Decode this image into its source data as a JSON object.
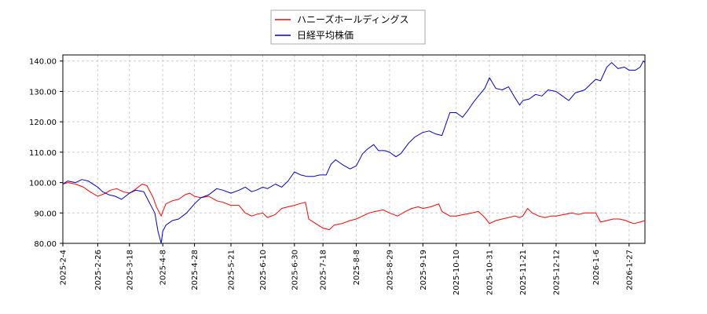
{
  "chart_data": {
    "type": "line",
    "legend_placement": "top-center",
    "grid": true,
    "ylim": [
      80,
      142
    ],
    "xlim": [
      "2025-02-04",
      "2026-02-06"
    ],
    "yticks": [
      "80.00",
      "90.00",
      "100.00",
      "110.00",
      "120.00",
      "130.00",
      "140.00"
    ],
    "xticks": [
      "2025-2-4",
      "2025-2-26",
      "2025-3-18",
      "2025-4-8",
      "2025-4-28",
      "2025-5-21",
      "2025-6-10",
      "2025-6-30",
      "2025-7-18",
      "2025-8-8",
      "2025-8-29",
      "2025-9-19",
      "2025-10-10",
      "2025-10-31",
      "2025-11-21",
      "2025-12-12",
      "2026-1-6",
      "2026-1-27"
    ],
    "series": [
      {
        "name": "ハニーズホールディングス",
        "color": "#ff0000",
        "points": [
          [
            "2025-02-04",
            99.5
          ],
          [
            "2025-02-07",
            100
          ],
          [
            "2025-02-12",
            99.5
          ],
          [
            "2025-02-17",
            98.5
          ],
          [
            "2025-02-21",
            97
          ],
          [
            "2025-02-26",
            95.5
          ],
          [
            "2025-03-03",
            96.5
          ],
          [
            "2025-03-06",
            97.5
          ],
          [
            "2025-03-10",
            98
          ],
          [
            "2025-03-14",
            97
          ],
          [
            "2025-03-18",
            96.5
          ],
          [
            "2025-03-21",
            97.5
          ],
          [
            "2025-03-26",
            99.5
          ],
          [
            "2025-03-29",
            99
          ],
          [
            "2025-04-02",
            95
          ],
          [
            "2025-04-04",
            92
          ],
          [
            "2025-04-07",
            89
          ],
          [
            "2025-04-08",
            90.5
          ],
          [
            "2025-04-10",
            93
          ],
          [
            "2025-04-14",
            94
          ],
          [
            "2025-04-18",
            94.5
          ],
          [
            "2025-04-22",
            96
          ],
          [
            "2025-04-25",
            96.5
          ],
          [
            "2025-04-28",
            95.5
          ],
          [
            "2025-05-02",
            95
          ],
          [
            "2025-05-07",
            95.5
          ],
          [
            "2025-05-12",
            94
          ],
          [
            "2025-05-16",
            93.5
          ],
          [
            "2025-05-21",
            92.5
          ],
          [
            "2025-05-26",
            92.5
          ],
          [
            "2025-05-30",
            90
          ],
          [
            "2025-06-03",
            89
          ],
          [
            "2025-06-06",
            89.5
          ],
          [
            "2025-06-10",
            90
          ],
          [
            "2025-06-13",
            88.5
          ],
          [
            "2025-06-18",
            89.5
          ],
          [
            "2025-06-22",
            91.5
          ],
          [
            "2025-06-26",
            92
          ],
          [
            "2025-06-30",
            92.5
          ],
          [
            "2025-07-03",
            93
          ],
          [
            "2025-07-07",
            93.5
          ],
          [
            "2025-07-09",
            88
          ],
          [
            "2025-07-12",
            87
          ],
          [
            "2025-07-15",
            86
          ],
          [
            "2025-07-18",
            85
          ],
          [
            "2025-07-22",
            84.5
          ],
          [
            "2025-07-25",
            86
          ],
          [
            "2025-07-30",
            86.5
          ],
          [
            "2025-08-04",
            87.5
          ],
          [
            "2025-08-08",
            88
          ],
          [
            "2025-08-12",
            89
          ],
          [
            "2025-08-16",
            90
          ],
          [
            "2025-08-20",
            90.5
          ],
          [
            "2025-08-25",
            91
          ],
          [
            "2025-08-29",
            90
          ],
          [
            "2025-09-03",
            89
          ],
          [
            "2025-09-08",
            90.5
          ],
          [
            "2025-09-12",
            91.5
          ],
          [
            "2025-09-16",
            92
          ],
          [
            "2025-09-19",
            91.5
          ],
          [
            "2025-09-24",
            92
          ],
          [
            "2025-09-29",
            93
          ],
          [
            "2025-10-01",
            90.5
          ],
          [
            "2025-10-06",
            89
          ],
          [
            "2025-10-10",
            89
          ],
          [
            "2025-10-15",
            89.5
          ],
          [
            "2025-10-20",
            90
          ],
          [
            "2025-10-24",
            90.5
          ],
          [
            "2025-10-28",
            88.5
          ],
          [
            "2025-10-31",
            86.5
          ],
          [
            "2025-11-04",
            87.5
          ],
          [
            "2025-11-08",
            88
          ],
          [
            "2025-11-12",
            88.5
          ],
          [
            "2025-11-16",
            89
          ],
          [
            "2025-11-19",
            88.5
          ],
          [
            "2025-11-21",
            89
          ],
          [
            "2025-11-24",
            91.5
          ],
          [
            "2025-11-27",
            90
          ],
          [
            "2025-12-01",
            89
          ],
          [
            "2025-12-05",
            88.5
          ],
          [
            "2025-12-09",
            89
          ],
          [
            "2025-12-12",
            89
          ],
          [
            "2025-12-17",
            89.5
          ],
          [
            "2025-12-22",
            90
          ],
          [
            "2025-12-26",
            89.5
          ],
          [
            "2025-12-30",
            90
          ],
          [
            "2026-01-06",
            90
          ],
          [
            "2026-01-09",
            87
          ],
          [
            "2026-01-13",
            87.5
          ],
          [
            "2026-01-17",
            88
          ],
          [
            "2026-01-21",
            88
          ],
          [
            "2026-01-25",
            87.5
          ],
          [
            "2026-01-27",
            87
          ],
          [
            "2026-01-30",
            86.5
          ],
          [
            "2026-02-03",
            87
          ],
          [
            "2026-02-06",
            87.5
          ]
        ]
      },
      {
        "name": "日経平均株価",
        "color": "#0000cc",
        "points": [
          [
            "2025-02-04",
            99.5
          ],
          [
            "2025-02-07",
            100.5
          ],
          [
            "2025-02-12",
            100
          ],
          [
            "2025-02-16",
            101
          ],
          [
            "2025-02-20",
            100.5
          ],
          [
            "2025-02-26",
            98.5
          ],
          [
            "2025-03-01",
            97
          ],
          [
            "2025-03-05",
            96
          ],
          [
            "2025-03-09",
            95.5
          ],
          [
            "2025-03-13",
            94.5
          ],
          [
            "2025-03-18",
            96.5
          ],
          [
            "2025-03-22",
            97.5
          ],
          [
            "2025-03-27",
            97
          ],
          [
            "2025-03-31",
            93
          ],
          [
            "2025-04-03",
            90
          ],
          [
            "2025-04-05",
            84
          ],
          [
            "2025-04-07",
            80
          ],
          [
            "2025-04-08",
            84
          ],
          [
            "2025-04-10",
            86
          ],
          [
            "2025-04-14",
            87.5
          ],
          [
            "2025-04-18",
            88
          ],
          [
            "2025-04-23",
            90
          ],
          [
            "2025-04-28",
            93
          ],
          [
            "2025-05-02",
            95
          ],
          [
            "2025-05-07",
            96
          ],
          [
            "2025-05-12",
            98
          ],
          [
            "2025-05-16",
            97.5
          ],
          [
            "2025-05-21",
            96.5
          ],
          [
            "2025-05-26",
            97.5
          ],
          [
            "2025-05-30",
            98.5
          ],
          [
            "2025-06-03",
            97
          ],
          [
            "2025-06-06",
            97.5
          ],
          [
            "2025-06-10",
            98.5
          ],
          [
            "2025-06-13",
            98
          ],
          [
            "2025-06-18",
            99.5
          ],
          [
            "2025-06-22",
            98.5
          ],
          [
            "2025-06-26",
            100.5
          ],
          [
            "2025-06-30",
            103.5
          ],
          [
            "2025-07-04",
            102.5
          ],
          [
            "2025-07-08",
            102
          ],
          [
            "2025-07-12",
            102
          ],
          [
            "2025-07-16",
            102.5
          ],
          [
            "2025-07-20",
            102.5
          ],
          [
            "2025-07-23",
            106
          ],
          [
            "2025-07-26",
            107.5
          ],
          [
            "2025-07-30",
            106
          ],
          [
            "2025-08-04",
            104.5
          ],
          [
            "2025-08-08",
            105.5
          ],
          [
            "2025-08-12",
            109.5
          ],
          [
            "2025-08-15",
            111
          ],
          [
            "2025-08-19",
            112.5
          ],
          [
            "2025-08-22",
            110.5
          ],
          [
            "2025-08-26",
            110.5
          ],
          [
            "2025-08-29",
            110
          ],
          [
            "2025-09-02",
            108.5
          ],
          [
            "2025-09-05",
            109.5
          ],
          [
            "2025-09-10",
            113
          ],
          [
            "2025-09-14",
            115
          ],
          [
            "2025-09-19",
            116.5
          ],
          [
            "2025-09-23",
            117
          ],
          [
            "2025-09-27",
            116
          ],
          [
            "2025-10-01",
            115.5
          ],
          [
            "2025-10-06",
            123
          ],
          [
            "2025-10-10",
            123
          ],
          [
            "2025-10-14",
            121.5
          ],
          [
            "2025-10-17",
            123.5
          ],
          [
            "2025-10-21",
            126.5
          ],
          [
            "2025-10-24",
            128.5
          ],
          [
            "2025-10-28",
            131
          ],
          [
            "2025-10-31",
            134.5
          ],
          [
            "2025-11-04",
            131
          ],
          [
            "2025-11-08",
            130.5
          ],
          [
            "2025-11-12",
            131.5
          ],
          [
            "2025-11-16",
            128
          ],
          [
            "2025-11-19",
            125.5
          ],
          [
            "2025-11-21",
            127
          ],
          [
            "2025-11-25",
            127.5
          ],
          [
            "2025-11-29",
            129
          ],
          [
            "2025-12-03",
            128.5
          ],
          [
            "2025-12-07",
            130.5
          ],
          [
            "2025-12-12",
            130
          ],
          [
            "2025-12-16",
            128.5
          ],
          [
            "2025-12-20",
            127
          ],
          [
            "2025-12-24",
            129.5
          ],
          [
            "2025-12-30",
            130.5
          ],
          [
            "2026-01-06",
            134
          ],
          [
            "2026-01-09",
            133.5
          ],
          [
            "2026-01-13",
            138
          ],
          [
            "2026-01-16",
            139.5
          ],
          [
            "2026-01-20",
            137.5
          ],
          [
            "2026-01-24",
            138
          ],
          [
            "2026-01-27",
            137
          ],
          [
            "2026-01-31",
            137
          ],
          [
            "2026-02-03",
            138
          ],
          [
            "2026-02-05",
            140
          ],
          [
            "2026-02-06",
            139.5
          ]
        ]
      }
    ]
  }
}
